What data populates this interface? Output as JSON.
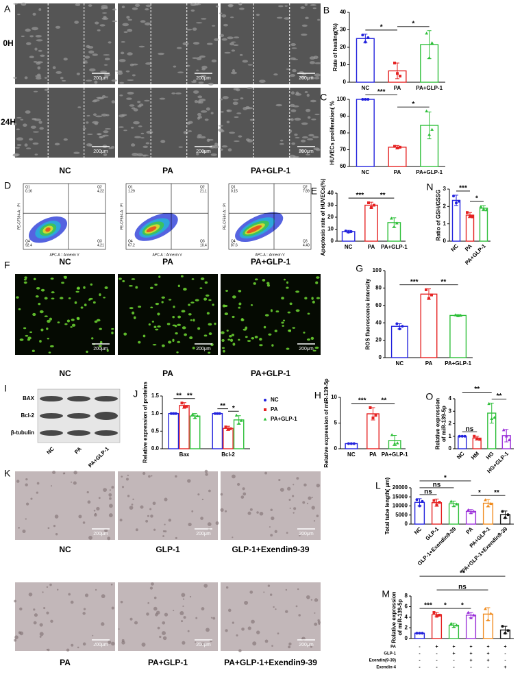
{
  "chart_data": [
    {
      "type": "bar",
      "label": "B",
      "y_label": "Rate of healing(%)",
      "categories": [
        "NC",
        "PA",
        "PA+GLP-1"
      ],
      "colors": [
        "#2222dd",
        "#e52222",
        "#2fbf3a"
      ],
      "markers": [
        "circle",
        "square",
        "triangle"
      ],
      "values": [
        25,
        6.5,
        21.5
      ],
      "errors": [
        2.5,
        4.5,
        8
      ],
      "points": [
        [
          27,
          23,
          25.5
        ],
        [
          11,
          5,
          3.5
        ],
        [
          28,
          14,
          22.5
        ]
      ],
      "ylim": [
        0,
        40
      ],
      "yticks": [
        0,
        10,
        20,
        30,
        40
      ],
      "annotations": [
        {
          "text": "*",
          "pair": [
            0,
            1
          ]
        },
        {
          "text": "*",
          "pair": [
            1,
            2
          ]
        }
      ]
    },
    {
      "type": "bar",
      "label": "C",
      "y_label": "HUVECs proliferation( %",
      "categories": [
        "NC",
        "PA",
        "PA+GLP-1"
      ],
      "colors": [
        "#2222dd",
        "#e52222",
        "#2fbf3a"
      ],
      "markers": [
        "circle",
        "square",
        "triangle"
      ],
      "values": [
        100,
        71.5,
        84.5
      ],
      "errors": [
        0.3,
        1,
        8
      ],
      "points": [
        [
          100,
          100,
          100
        ],
        [
          72,
          71,
          71.5
        ],
        [
          93,
          79,
          82
        ]
      ],
      "ylim": [
        60,
        100
      ],
      "yticks": [
        60,
        70,
        80,
        90,
        100
      ],
      "annotations": [
        {
          "text": "***",
          "pair": [
            0,
            1
          ]
        },
        {
          "text": "*",
          "pair": [
            1,
            2
          ]
        }
      ]
    },
    {
      "type": "bar",
      "label": "E",
      "y_label": "Apoptosis rate of HUVECs(%)",
      "categories": [
        "NC",
        "PA",
        "PA+GLP-1"
      ],
      "colors": [
        "#2222dd",
        "#e52222",
        "#2fbf3a"
      ],
      "markers": [
        "circle",
        "square",
        "triangle"
      ],
      "values": [
        8,
        30,
        15.5
      ],
      "errors": [
        1,
        2.5,
        4
      ],
      "points": [
        [
          8.5,
          7.5,
          8
        ],
        [
          32,
          28,
          30
        ],
        [
          19,
          12,
          15
        ]
      ],
      "ylim": [
        0,
        40
      ],
      "yticks": [
        0,
        10,
        20,
        30,
        40
      ],
      "annotations": [
        {
          "text": "***",
          "pair": [
            0,
            1
          ]
        },
        {
          "text": "**",
          "pair": [
            1,
            2
          ]
        }
      ]
    },
    {
      "type": "bar",
      "label": "N",
      "y_label": "Ratio of GSH/GSSG",
      "categories": [
        "NC",
        "PA",
        "PA+GLP-1"
      ],
      "colors": [
        "#2222dd",
        "#e52222",
        "#2fbf3a"
      ],
      "markers": [
        "circle",
        "square",
        "triangle"
      ],
      "values": [
        2.35,
        1.5,
        1.9
      ],
      "errors": [
        0.3,
        0.15,
        0.15
      ],
      "points": [
        [
          2.6,
          2.2,
          2.3
        ],
        [
          1.65,
          1.45,
          1.4
        ],
        [
          2,
          1.85,
          1.8
        ]
      ],
      "ylim": [
        0,
        3
      ],
      "yticks": [
        0,
        1,
        2,
        3
      ],
      "annotations": [
        {
          "text": "***",
          "pair": [
            0,
            1
          ]
        },
        {
          "text": "*",
          "pair": [
            1,
            2
          ]
        }
      ]
    },
    {
      "type": "bar",
      "label": "G",
      "y_label": "ROS fluorescence intensity",
      "categories": [
        "NC",
        "PA",
        "PA+GLP-1"
      ],
      "colors": [
        "#2222dd",
        "#e52222",
        "#2fbf3a"
      ],
      "markers": [
        "circle",
        "square",
        "triangle"
      ],
      "values": [
        36,
        73,
        48.5
      ],
      "errors": [
        3,
        6,
        1
      ],
      "points": [
        [
          39,
          33,
          36
        ],
        [
          78,
          68,
          72
        ],
        [
          49,
          48,
          48.5
        ]
      ],
      "ylim": [
        0,
        100
      ],
      "yticks": [
        0,
        20,
        40,
        60,
        80,
        100
      ],
      "annotations": [
        {
          "text": "***",
          "pair": [
            0,
            1
          ]
        },
        {
          "text": "**",
          "pair": [
            1,
            2
          ]
        }
      ]
    },
    {
      "type": "grouped_bar",
      "label": "J",
      "y_label": "Relative expression of proteins",
      "categories": [
        "Bax",
        "Bcl-2"
      ],
      "series": [
        {
          "name": "NC",
          "color": "#2222dd",
          "marker": "circle",
          "values": [
            1,
            1
          ],
          "errors": [
            0.02,
            0.02
          ],
          "points": [
            [
              1,
              1,
              1
            ],
            [
              1,
              1,
              1
            ]
          ]
        },
        {
          "name": "PA",
          "color": "#e52222",
          "marker": "square",
          "values": [
            1.23,
            0.58
          ],
          "errors": [
            0.08,
            0.06
          ],
          "points": [
            [
              1.3,
              1.18,
              1.2
            ],
            [
              0.62,
              0.55,
              0.57
            ]
          ]
        },
        {
          "name": "PA+GLP-1",
          "color": "#2fbf3a",
          "marker": "triangle",
          "values": [
            0.93,
            0.82
          ],
          "errors": [
            0.07,
            0.12
          ],
          "points": [
            [
              0.98,
              0.88,
              0.93
            ],
            [
              0.95,
              0.72,
              0.8
            ]
          ]
        }
      ],
      "ylim": [
        0,
        1.5
      ],
      "yticks": [
        {
          "value": 0,
          "label": "0.0"
        },
        {
          "value": 0.5,
          "label": "0.5"
        },
        {
          "value": 1,
          "label": "1.0"
        },
        {
          "value": 1.5,
          "label": "1.5"
        }
      ],
      "annotations": [
        {
          "text": "**",
          "group": 0,
          "pair": [
            0,
            1
          ]
        },
        {
          "text": "**",
          "group": 0,
          "pair": [
            1,
            2
          ]
        },
        {
          "text": "**",
          "group": 1,
          "pair": [
            0,
            1
          ]
        },
        {
          "text": "*",
          "group": 1,
          "pair": [
            1,
            2
          ]
        }
      ]
    },
    {
      "type": "bar",
      "label": "H",
      "y_label": "Relative expression of miR-139-5p",
      "categories": [
        "NC",
        "PA",
        "PA+GLP-1"
      ],
      "colors": [
        "#2222dd",
        "#e52222",
        "#2fbf3a"
      ],
      "markers": [
        "circle",
        "square",
        "triangle"
      ],
      "values": [
        1,
        6.8,
        1.6
      ],
      "errors": [
        0.05,
        1.2,
        1
      ],
      "points": [
        [
          1,
          1,
          1
        ],
        [
          8,
          6,
          6.5
        ],
        [
          2.7,
          1,
          1.1
        ]
      ],
      "ylim": [
        0,
        10
      ],
      "yticks": [
        0,
        5,
        10
      ],
      "annotations": [
        {
          "text": "***",
          "pair": [
            0,
            1
          ]
        },
        {
          "text": "**",
          "pair": [
            1,
            2
          ]
        }
      ]
    },
    {
      "type": "bar",
      "label": "O",
      "y_label": [
        "Relative expression",
        "of miR-139-5p"
      ],
      "categories": [
        "NC",
        "HM",
        "HG",
        "HG+GLP-1"
      ],
      "colors": [
        "#2222dd",
        "#e52222",
        "#2fbf3a",
        "#9b30d9"
      ],
      "markers": [
        "circle",
        "square",
        "triangle",
        "triangle"
      ],
      "values": [
        1,
        0.85,
        2.85,
        1.05
      ],
      "errors": [
        0.03,
        0.15,
        0.8,
        0.5
      ],
      "points": [
        [
          1,
          1,
          1
        ],
        [
          1,
          0.8,
          0.75
        ],
        [
          3.6,
          2.4,
          2.5
        ],
        [
          1.5,
          1,
          0.7
        ]
      ],
      "ylim": [
        0,
        4
      ],
      "yticks": [
        0,
        1,
        2,
        3,
        4
      ],
      "annotations": [
        {
          "text": "ns",
          "pair": [
            0,
            1
          ]
        },
        {
          "text": "**",
          "pair": [
            0,
            2
          ]
        },
        {
          "text": "**",
          "pair": [
            2,
            3
          ]
        }
      ]
    },
    {
      "type": "bar",
      "label": "L",
      "y_label": "Total tube length( μm)",
      "categories": [
        "NC",
        "GLP-1",
        "GLP-1+Exendin9-39",
        "PA",
        "PA+GLP-1",
        "PA+GLP-1+Exendin9-39"
      ],
      "colors": [
        "#2222dd",
        "#e52222",
        "#2fbf3a",
        "#9b30d9",
        "#f08a1c",
        "#111111"
      ],
      "markers": [
        "circle",
        "square",
        "triangle",
        "triangle",
        "triangle",
        "circle"
      ],
      "values": [
        12000,
        11800,
        11200,
        7000,
        11500,
        5200
      ],
      "errors": [
        2000,
        2000,
        1500,
        1000,
        2000,
        2000
      ],
      "points": [
        [
          13500,
          10000,
          12500
        ],
        [
          13000,
          10500,
          12000
        ],
        [
          12500,
          10000,
          11000
        ],
        [
          7800,
          6200,
          7000
        ],
        [
          13300,
          10000,
          11200
        ],
        [
          7000,
          3500,
          5200
        ]
      ],
      "ylim": [
        0,
        20000
      ],
      "yticks": [
        0,
        5000,
        10000,
        15000,
        20000
      ],
      "annotations": [
        {
          "text": "ns",
          "pair": [
            0,
            1
          ]
        },
        {
          "text": "ns",
          "pair": [
            0,
            2
          ]
        },
        {
          "text": "*",
          "pair": [
            0,
            3
          ]
        },
        {
          "text": "*",
          "pair": [
            3,
            4
          ]
        },
        {
          "text": "**",
          "pair": [
            4,
            5
          ]
        }
      ]
    },
    {
      "type": "bar",
      "label": "M",
      "y_label": [
        "Relative expression",
        "of miR-139-5p"
      ],
      "categories": [
        null,
        null,
        null,
        null,
        null,
        null
      ],
      "colors": [
        "#2222dd",
        "#e52222",
        "#2fbf3a",
        "#9b30d9",
        "#f08a1c",
        "#111111"
      ],
      "markers": [
        "circle",
        "square",
        "triangle",
        "triangle",
        "triangle",
        "circle"
      ],
      "values": [
        1,
        4.5,
        2.5,
        4.4,
        4.6,
        1.6
      ],
      "errors": [
        0.05,
        0.4,
        0.4,
        0.5,
        1.2,
        0.7
      ],
      "points": [
        [
          1,
          1,
          1
        ],
        [
          4.9,
          4.2,
          4.4
        ],
        [
          2.8,
          2.2,
          2.5
        ],
        [
          4.9,
          3.9,
          4.4
        ],
        [
          5.6,
          3.5,
          4.7
        ],
        [
          2.3,
          1,
          1.5
        ]
      ],
      "ylim": [
        0,
        8
      ],
      "yticks": [
        0,
        2,
        4,
        6,
        8
      ],
      "annotations": [
        {
          "text": "***",
          "pair": [
            0,
            1
          ]
        },
        {
          "text": "*",
          "pair": [
            1,
            2
          ]
        },
        {
          "text": "*",
          "pair": [
            2,
            3
          ]
        },
        {
          "text": "ns",
          "pair": [
            1,
            4
          ]
        },
        {
          "text": "**",
          "pair": [
            0,
            5
          ]
        }
      ],
      "conditions": [
        {
          "name": "PA",
          "signs": [
            "-",
            "+",
            "+",
            "+",
            "+",
            "+"
          ]
        },
        {
          "name": "GLP-1",
          "signs": [
            "-",
            "-",
            "+",
            "+",
            "+",
            "-"
          ]
        },
        {
          "name": "Exendin(9-39)",
          "signs": [
            "-",
            "-",
            "-",
            "+",
            "+",
            "-"
          ]
        },
        {
          "name": "Exendin-4",
          "signs": [
            "-",
            "-",
            "-",
            "-",
            "-",
            "+"
          ]
        }
      ]
    }
  ],
  "panels": {
    "A": {
      "label": "A",
      "rows": [
        "0H",
        "24H"
      ],
      "columns": [
        "NC",
        "PA",
        "PA+GLP-1"
      ],
      "scale": "200μm"
    },
    "D": {
      "label": "D",
      "x_axis": "APC-A :: Annexin V",
      "y_axis": "PE-CF594-A :: PI",
      "quadrants": [
        "Q1",
        "Q2",
        "Q3",
        "Q4"
      ],
      "plots": [
        [
          "0.16",
          "4.22",
          "4.21",
          "92.4"
        ],
        [
          "1.29",
          "21.1",
          "10.4",
          "67.2"
        ],
        [
          "0.15",
          "7.89",
          "4.40",
          "87.6"
        ]
      ]
    },
    "F": {
      "label": "F",
      "columns": [
        "NC",
        "PA",
        "PA+GLP-1"
      ],
      "scale": "200μm"
    },
    "I": {
      "label": "I",
      "proteins": [
        "BAX",
        "Bcl-2",
        "β-tubulin"
      ],
      "lanes": [
        "NC",
        "PA",
        "PA+GLP-1"
      ]
    },
    "K": {
      "label": "K",
      "rows": [
        [
          "NC",
          "GLP-1",
          "GLP-1+Exendin9-39"
        ],
        [
          "PA",
          "PA+GLP-1",
          "PA+GLP-1+Exendin9-39"
        ]
      ],
      "scale": "200μm"
    }
  }
}
